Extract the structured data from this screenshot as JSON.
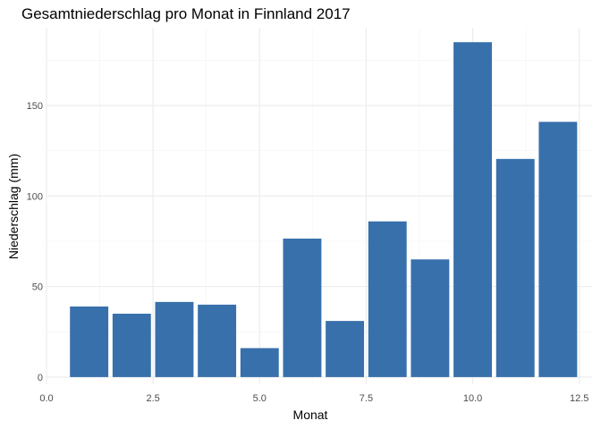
{
  "chart_data": {
    "type": "bar",
    "title": "Gesamtniederschlag pro Monat in Finnland 2017",
    "xlabel": "Monat",
    "ylabel": "Niederschlag (mm)",
    "x": [
      1,
      2,
      3,
      4,
      5,
      6,
      7,
      8,
      9,
      10,
      11,
      12
    ],
    "values": [
      39,
      35,
      41.5,
      40,
      16,
      76.5,
      31,
      86,
      65,
      185,
      120.5,
      141
    ],
    "xlim": [
      0,
      12.8
    ],
    "ylim": [
      -4,
      193
    ],
    "x_ticks": [
      0.0,
      2.5,
      5.0,
      7.5,
      10.0,
      12.5
    ],
    "x_tick_labels": [
      "0.0",
      "2.5",
      "5.0",
      "7.5",
      "10.0",
      "12.5"
    ],
    "y_ticks": [
      0,
      50,
      100,
      150
    ],
    "y_tick_labels": [
      "0",
      "50",
      "100",
      "150"
    ],
    "bar_color": "#3870ab",
    "grid": true,
    "legend": "none"
  }
}
